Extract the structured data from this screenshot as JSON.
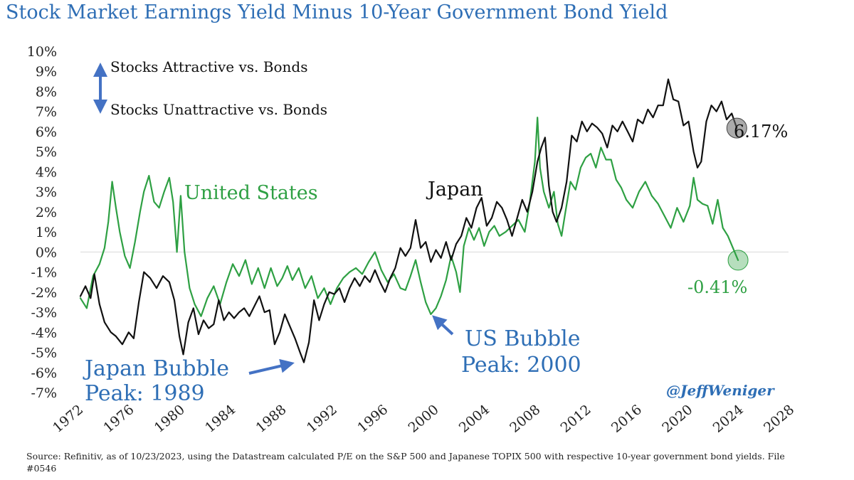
{
  "title": "Stock Market Earnings Yield Minus 10-Year Government Bond Yield",
  "source": "Source: Refinitiv, as of 10/23/2023, using the Datastream calculated P/E on the S&P 500 and Japanese TOPIX 500 with respective 10-year government bond yields. File #0546",
  "watermark": "@JeffWeniger",
  "colors": {
    "us": "#2ea043",
    "japan": "#111111",
    "annotation": "#2e6eb5",
    "arrow": "#4472c4"
  },
  "chart_data": {
    "type": "line",
    "title": "Stock Market Earnings Yield Minus 10-Year Government Bond Yield",
    "xlabel": "",
    "ylabel": "",
    "xlim": [
      1972,
      2028
    ],
    "ylim": [
      -7,
      10
    ],
    "x_ticks": [
      1972,
      1976,
      1980,
      1984,
      1988,
      1992,
      1996,
      2000,
      2004,
      2008,
      2012,
      2016,
      2020,
      2024,
      2028
    ],
    "y_ticks": [
      "-7%",
      "-6%",
      "-5%",
      "-4%",
      "-3%",
      "-2%",
      "-1%",
      "0%",
      "1%",
      "2%",
      "3%",
      "4%",
      "5%",
      "6%",
      "7%",
      "8%",
      "9%",
      "10%"
    ],
    "grid": false,
    "legend": "none",
    "series": [
      {
        "name": "United States",
        "color": "#2ea043",
        "points": [
          [
            1972.0,
            -2.3
          ],
          [
            1972.5,
            -2.8
          ],
          [
            1973.0,
            -1.2
          ],
          [
            1973.5,
            -0.6
          ],
          [
            1973.9,
            0.2
          ],
          [
            1974.2,
            1.5
          ],
          [
            1974.5,
            3.5
          ],
          [
            1974.8,
            2.2
          ],
          [
            1975.1,
            1.0
          ],
          [
            1975.5,
            -0.2
          ],
          [
            1975.9,
            -0.8
          ],
          [
            1976.3,
            0.5
          ],
          [
            1976.7,
            2.0
          ],
          [
            1977.0,
            3.0
          ],
          [
            1977.4,
            3.8
          ],
          [
            1977.8,
            2.5
          ],
          [
            1978.2,
            2.2
          ],
          [
            1978.6,
            3.0
          ],
          [
            1979.0,
            3.7
          ],
          [
            1979.3,
            2.5
          ],
          [
            1979.6,
            0.0
          ],
          [
            1979.9,
            2.8
          ],
          [
            1980.2,
            0.0
          ],
          [
            1980.6,
            -1.8
          ],
          [
            1981.0,
            -2.6
          ],
          [
            1981.5,
            -3.2
          ],
          [
            1982.0,
            -2.3
          ],
          [
            1982.5,
            -1.7
          ],
          [
            1983.0,
            -2.6
          ],
          [
            1983.5,
            -1.5
          ],
          [
            1984.0,
            -0.6
          ],
          [
            1984.5,
            -1.2
          ],
          [
            1985.0,
            -0.4
          ],
          [
            1985.5,
            -1.6
          ],
          [
            1986.0,
            -0.8
          ],
          [
            1986.5,
            -1.8
          ],
          [
            1987.0,
            -0.8
          ],
          [
            1987.5,
            -1.7
          ],
          [
            1987.9,
            -1.3
          ],
          [
            1988.3,
            -0.7
          ],
          [
            1988.7,
            -1.4
          ],
          [
            1989.2,
            -0.8
          ],
          [
            1989.7,
            -1.8
          ],
          [
            1990.2,
            -1.2
          ],
          [
            1990.7,
            -2.3
          ],
          [
            1991.2,
            -1.8
          ],
          [
            1991.7,
            -2.6
          ],
          [
            1992.2,
            -1.8
          ],
          [
            1992.7,
            -1.3
          ],
          [
            1993.2,
            -1.0
          ],
          [
            1993.7,
            -0.8
          ],
          [
            1994.2,
            -1.1
          ],
          [
            1994.7,
            -0.5
          ],
          [
            1995.2,
            0.0
          ],
          [
            1995.7,
            -0.9
          ],
          [
            1996.2,
            -1.5
          ],
          [
            1996.7,
            -1.1
          ],
          [
            1997.2,
            -1.8
          ],
          [
            1997.6,
            -1.9
          ],
          [
            1998.0,
            -1.2
          ],
          [
            1998.4,
            -0.4
          ],
          [
            1998.8,
            -1.5
          ],
          [
            1999.2,
            -2.5
          ],
          [
            1999.6,
            -3.1
          ],
          [
            2000.0,
            -2.8
          ],
          [
            2000.4,
            -2.2
          ],
          [
            2000.8,
            -1.4
          ],
          [
            2001.2,
            -0.2
          ],
          [
            2001.6,
            -1.0
          ],
          [
            2001.9,
            -2.0
          ],
          [
            2002.2,
            0.3
          ],
          [
            2002.6,
            1.2
          ],
          [
            2003.0,
            0.6
          ],
          [
            2003.4,
            1.2
          ],
          [
            2003.8,
            0.3
          ],
          [
            2004.2,
            1.0
          ],
          [
            2004.6,
            1.3
          ],
          [
            2005.0,
            0.8
          ],
          [
            2005.5,
            1.0
          ],
          [
            2006.0,
            1.3
          ],
          [
            2006.5,
            1.6
          ],
          [
            2007.0,
            1.0
          ],
          [
            2007.4,
            2.5
          ],
          [
            2007.8,
            4.5
          ],
          [
            2008.0,
            6.7
          ],
          [
            2008.2,
            4.2
          ],
          [
            2008.5,
            3.0
          ],
          [
            2008.9,
            2.2
          ],
          [
            2009.3,
            3.0
          ],
          [
            2009.6,
            1.4
          ],
          [
            2009.9,
            0.8
          ],
          [
            2010.2,
            2.0
          ],
          [
            2010.6,
            3.5
          ],
          [
            2011.0,
            3.1
          ],
          [
            2011.4,
            4.2
          ],
          [
            2011.8,
            4.7
          ],
          [
            2012.2,
            4.9
          ],
          [
            2012.6,
            4.2
          ],
          [
            2013.0,
            5.2
          ],
          [
            2013.4,
            4.6
          ],
          [
            2013.8,
            4.6
          ],
          [
            2014.2,
            3.6
          ],
          [
            2014.6,
            3.2
          ],
          [
            2015.0,
            2.6
          ],
          [
            2015.5,
            2.2
          ],
          [
            2016.0,
            3.0
          ],
          [
            2016.5,
            3.5
          ],
          [
            2017.0,
            2.8
          ],
          [
            2017.5,
            2.4
          ],
          [
            2018.0,
            1.8
          ],
          [
            2018.5,
            1.2
          ],
          [
            2019.0,
            2.2
          ],
          [
            2019.5,
            1.5
          ],
          [
            2020.0,
            2.3
          ],
          [
            2020.3,
            3.7
          ],
          [
            2020.6,
            2.6
          ],
          [
            2021.0,
            2.4
          ],
          [
            2021.4,
            2.3
          ],
          [
            2021.8,
            1.4
          ],
          [
            2022.2,
            2.6
          ],
          [
            2022.6,
            1.2
          ],
          [
            2023.0,
            0.8
          ],
          [
            2023.4,
            0.2
          ],
          [
            2023.8,
            -0.41
          ]
        ]
      },
      {
        "name": "Japan",
        "color": "#111111",
        "points": [
          [
            1972.0,
            -2.2
          ],
          [
            1972.4,
            -1.7
          ],
          [
            1972.8,
            -2.3
          ],
          [
            1973.1,
            -1.1
          ],
          [
            1973.5,
            -2.6
          ],
          [
            1973.9,
            -3.5
          ],
          [
            1974.4,
            -4.0
          ],
          [
            1974.8,
            -4.2
          ],
          [
            1975.3,
            -4.6
          ],
          [
            1975.8,
            -4.0
          ],
          [
            1976.2,
            -4.3
          ],
          [
            1976.6,
            -2.5
          ],
          [
            1977.0,
            -1.0
          ],
          [
            1977.5,
            -1.3
          ],
          [
            1978.0,
            -1.8
          ],
          [
            1978.5,
            -1.2
          ],
          [
            1979.0,
            -1.5
          ],
          [
            1979.4,
            -2.4
          ],
          [
            1979.8,
            -4.2
          ],
          [
            1980.1,
            -5.1
          ],
          [
            1980.5,
            -3.5
          ],
          [
            1980.9,
            -2.8
          ],
          [
            1981.3,
            -4.1
          ],
          [
            1981.7,
            -3.4
          ],
          [
            1982.1,
            -3.8
          ],
          [
            1982.5,
            -3.6
          ],
          [
            1982.9,
            -2.4
          ],
          [
            1983.3,
            -3.4
          ],
          [
            1983.7,
            -3.0
          ],
          [
            1984.1,
            -3.3
          ],
          [
            1984.5,
            -3.0
          ],
          [
            1984.9,
            -2.8
          ],
          [
            1985.3,
            -3.2
          ],
          [
            1985.7,
            -2.7
          ],
          [
            1986.1,
            -2.2
          ],
          [
            1986.5,
            -3.0
          ],
          [
            1986.9,
            -2.9
          ],
          [
            1987.3,
            -4.6
          ],
          [
            1987.7,
            -4.0
          ],
          [
            1988.1,
            -3.1
          ],
          [
            1988.5,
            -3.7
          ],
          [
            1988.9,
            -4.3
          ],
          [
            1989.3,
            -5.0
          ],
          [
            1989.6,
            -5.5
          ],
          [
            1990.0,
            -4.5
          ],
          [
            1990.4,
            -2.4
          ],
          [
            1990.8,
            -3.4
          ],
          [
            1991.2,
            -2.6
          ],
          [
            1991.6,
            -2.0
          ],
          [
            1992.0,
            -2.1
          ],
          [
            1992.4,
            -1.8
          ],
          [
            1992.8,
            -2.5
          ],
          [
            1993.2,
            -1.8
          ],
          [
            1993.6,
            -1.3
          ],
          [
            1994.0,
            -1.7
          ],
          [
            1994.4,
            -1.2
          ],
          [
            1994.8,
            -1.5
          ],
          [
            1995.2,
            -0.9
          ],
          [
            1995.6,
            -1.5
          ],
          [
            1996.0,
            -2.0
          ],
          [
            1996.4,
            -1.3
          ],
          [
            1996.8,
            -0.8
          ],
          [
            1997.2,
            0.2
          ],
          [
            1997.6,
            -0.2
          ],
          [
            1998.0,
            0.2
          ],
          [
            1998.4,
            1.6
          ],
          [
            1998.8,
            0.2
          ],
          [
            1999.2,
            0.5
          ],
          [
            1999.6,
            -0.5
          ],
          [
            2000.0,
            0.1
          ],
          [
            2000.4,
            -0.3
          ],
          [
            2000.8,
            0.5
          ],
          [
            2001.2,
            -0.4
          ],
          [
            2001.6,
            0.4
          ],
          [
            2002.0,
            0.8
          ],
          [
            2002.4,
            1.7
          ],
          [
            2002.8,
            1.2
          ],
          [
            2003.2,
            2.2
          ],
          [
            2003.6,
            2.7
          ],
          [
            2004.0,
            1.3
          ],
          [
            2004.4,
            1.7
          ],
          [
            2004.8,
            2.5
          ],
          [
            2005.2,
            2.2
          ],
          [
            2005.6,
            1.6
          ],
          [
            2006.0,
            0.8
          ],
          [
            2006.4,
            1.7
          ],
          [
            2006.8,
            2.6
          ],
          [
            2007.2,
            2.0
          ],
          [
            2007.6,
            3.0
          ],
          [
            2008.0,
            4.5
          ],
          [
            2008.3,
            5.2
          ],
          [
            2008.6,
            5.7
          ],
          [
            2008.9,
            3.3
          ],
          [
            2009.2,
            2.0
          ],
          [
            2009.5,
            1.5
          ],
          [
            2009.9,
            2.2
          ],
          [
            2010.3,
            3.5
          ],
          [
            2010.7,
            5.8
          ],
          [
            2011.1,
            5.5
          ],
          [
            2011.5,
            6.5
          ],
          [
            2011.9,
            6.0
          ],
          [
            2012.3,
            6.4
          ],
          [
            2012.7,
            6.2
          ],
          [
            2013.1,
            5.9
          ],
          [
            2013.5,
            5.2
          ],
          [
            2013.9,
            6.3
          ],
          [
            2014.3,
            6.0
          ],
          [
            2014.7,
            6.5
          ],
          [
            2015.1,
            6.0
          ],
          [
            2015.5,
            5.5
          ],
          [
            2015.9,
            6.6
          ],
          [
            2016.3,
            6.4
          ],
          [
            2016.7,
            7.1
          ],
          [
            2017.1,
            6.7
          ],
          [
            2017.5,
            7.3
          ],
          [
            2017.9,
            7.3
          ],
          [
            2018.3,
            8.6
          ],
          [
            2018.7,
            7.6
          ],
          [
            2019.1,
            7.5
          ],
          [
            2019.5,
            6.3
          ],
          [
            2019.9,
            6.5
          ],
          [
            2020.3,
            5.0
          ],
          [
            2020.6,
            4.2
          ],
          [
            2020.9,
            4.5
          ],
          [
            2021.3,
            6.5
          ],
          [
            2021.7,
            7.3
          ],
          [
            2022.1,
            7.0
          ],
          [
            2022.5,
            7.5
          ],
          [
            2022.9,
            6.6
          ],
          [
            2023.3,
            6.9
          ],
          [
            2023.7,
            6.17
          ]
        ]
      }
    ],
    "annotations": [
      {
        "text": "United States",
        "color": "#2ea043"
      },
      {
        "text": "Japan",
        "color": "#111111"
      },
      {
        "text": "6.17%",
        "color": "#111111"
      },
      {
        "text": "-0.41%",
        "color": "#2ea043"
      },
      {
        "text": "Japan Bubble",
        "color": "#2e6eb5"
      },
      {
        "text": "Peak: 1989",
        "color": "#2e6eb5"
      },
      {
        "text": "US Bubble",
        "color": "#2e6eb5"
      },
      {
        "text": "Peak: 2000",
        "color": "#2e6eb5"
      },
      {
        "text": "Stocks Attractive vs. Bonds",
        "color": "#111111"
      },
      {
        "text": "Stocks Unattractive vs. Bonds",
        "color": "#111111"
      }
    ]
  }
}
